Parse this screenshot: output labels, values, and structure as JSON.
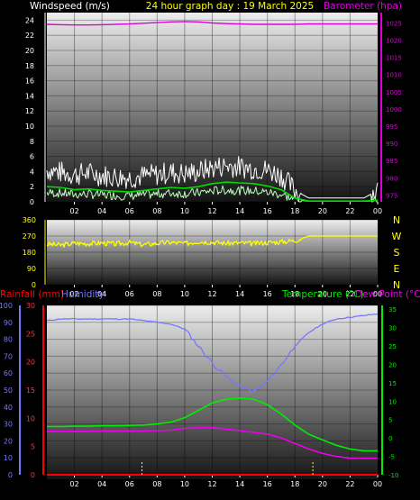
{
  "header": {
    "left_label": "Windspeed (m/s)",
    "center_label": "24 hour graph day : 19 March 2025",
    "right_label": "Barometer (hpa)"
  },
  "colors": {
    "wind_gust": "#ffffff",
    "wind_avg": "#00dd00",
    "wind_light": "#bbffbb",
    "barometer": "#dd00dd",
    "direction": "#ffff00",
    "humidity": "#7777ff",
    "temperature": "#00ee00",
    "dewpoint": "#ee00ee",
    "rainfall": "#ff0000",
    "sunrise_sunset": "#ffff00",
    "direction_label": "#ffff00"
  },
  "x_ticks": [
    "02",
    "04",
    "06",
    "08",
    "10",
    "12",
    "14",
    "16",
    "18",
    "20",
    "22",
    "00"
  ],
  "panel_wind": {
    "y_left_ticks": [
      "0",
      "2",
      "4",
      "6",
      "8",
      "10",
      "12",
      "14",
      "16",
      "18",
      "20",
      "22",
      "24"
    ],
    "y_right_ticks": [
      "975",
      "980",
      "985",
      "990",
      "995",
      "1000",
      "1005",
      "1010",
      "1015",
      "1020",
      "1025"
    ]
  },
  "panel_direction": {
    "y_left_ticks": [
      "0",
      "90",
      "180",
      "270",
      "360"
    ],
    "compass_labels": [
      "N",
      "W",
      "S",
      "E",
      "N"
    ]
  },
  "panel_bottom": {
    "left_label_rain": "Rainfall (mm)",
    "left_label_humidity": "Humidity",
    "right_label_temp": "Temperature (°C)",
    "right_label_dew": "Dew Point (°C)",
    "y_rain_ticks": [
      "0",
      "5",
      "10",
      "15",
      "20",
      "25",
      "30"
    ],
    "y_humidity_ticks": [
      "0",
      "10",
      "20",
      "30",
      "40",
      "50",
      "60",
      "70",
      "80",
      "90",
      "100"
    ],
    "y_temp_ticks": [
      "-10",
      "-5",
      "0",
      "5",
      "10",
      "15",
      "20",
      "25",
      "30",
      "35"
    ]
  },
  "chart_data": [
    {
      "type": "line",
      "title": "24 hour graph day : 19 March 2025",
      "x": [
        0,
        1,
        2,
        3,
        4,
        5,
        6,
        7,
        8,
        9,
        10,
        11,
        12,
        13,
        14,
        15,
        16,
        17,
        18,
        19,
        20,
        21,
        22,
        23,
        24
      ],
      "x_tick_labels": [
        "02",
        "04",
        "06",
        "08",
        "10",
        "12",
        "14",
        "16",
        "18",
        "20",
        "22",
        "00"
      ],
      "ylabel_left": "Windspeed (m/s)",
      "ylim_left": [
        0,
        25
      ],
      "ylabel_right": "Barometer (hpa)",
      "ylim_right": [
        973,
        1028
      ],
      "series": [
        {
          "name": "Windspeed (m/s)",
          "axis": "left",
          "values": [
            4.2,
            3.9,
            3.6,
            3.8,
            3.5,
            3.3,
            3.2,
            3.4,
            3.6,
            3.9,
            3.7,
            4.0,
            4.5,
            4.8,
            4.6,
            4.4,
            4.2,
            3.5,
            1.5,
            0.5,
            0.5,
            0.5,
            0.5,
            0.5,
            1.5
          ]
        },
        {
          "name": "",
          "axis": "left",
          "values": [
            2.0,
            1.9,
            1.6,
            1.7,
            1.5,
            1.4,
            1.3,
            1.5,
            1.7,
            1.9,
            1.8,
            2.0,
            2.4,
            2.6,
            2.5,
            2.4,
            2.1,
            1.6,
            0.5,
            0.1,
            0.1,
            0.1,
            0.1,
            0.1,
            0.2
          ]
        },
        {
          "name": "Barometer (hpa)",
          "axis": "right",
          "values": [
            1024.6,
            1024.5,
            1024.4,
            1024.4,
            1024.5,
            1024.6,
            1024.7,
            1024.9,
            1025.1,
            1025.3,
            1025.4,
            1025.3,
            1025.0,
            1024.8,
            1024.7,
            1024.6,
            1024.6,
            1024.6,
            1024.6,
            1024.7,
            1024.7,
            1024.7,
            1024.7,
            1024.7,
            1024.7
          ]
        }
      ]
    },
    {
      "type": "line",
      "x": [
        0,
        1,
        2,
        3,
        4,
        5,
        6,
        7,
        8,
        9,
        10,
        11,
        12,
        13,
        14,
        15,
        16,
        17,
        18,
        19,
        20,
        21,
        22,
        23,
        24
      ],
      "x_tick_labels": [
        "02",
        "04",
        "06",
        "08",
        "10",
        "12",
        "14",
        "16",
        "18",
        "20",
        "22",
        "00"
      ],
      "ylim": [
        0,
        360
      ],
      "series": [
        {
          "name": "",
          "values": [
            225,
            220,
            230,
            228,
            232,
            226,
            234,
            222,
            230,
            235,
            228,
            240,
            236,
            230,
            232,
            228,
            234,
            238,
            245,
            270,
            270,
            270,
            270,
            270,
            270
          ]
        }
      ]
    },
    {
      "type": "line",
      "x": [
        0,
        1,
        2,
        3,
        4,
        5,
        6,
        7,
        8,
        9,
        10,
        11,
        12,
        13,
        14,
        15,
        16,
        17,
        18,
        19,
        20,
        21,
        22,
        23,
        24
      ],
      "x_tick_labels": [
        "02",
        "04",
        "06",
        "08",
        "10",
        "12",
        "14",
        "16",
        "18",
        "20",
        "22",
        "00"
      ],
      "ylim_humidity": [
        0,
        100
      ],
      "ylim_temperature": [
        -10,
        36
      ],
      "ylim_rainfall": [
        0,
        30
      ],
      "series": [
        {
          "name": "Humidity",
          "axis": "humidity",
          "values": [
            91,
            92,
            92,
            92,
            92,
            92,
            92,
            91,
            90,
            89,
            86,
            76,
            66,
            58,
            52,
            49,
            55,
            65,
            76,
            84,
            89,
            92,
            93,
            94,
            95
          ]
        },
        {
          "name": "Temperature (°C)",
          "axis": "temperature",
          "values": [
            3.1,
            3.1,
            3.2,
            3.2,
            3.3,
            3.3,
            3.4,
            3.5,
            3.8,
            4.3,
            5.5,
            7.5,
            9.5,
            10.5,
            10.8,
            10.5,
            9.0,
            6.5,
            3.5,
            1.0,
            -0.5,
            -2.0,
            -3.0,
            -3.5,
            -3.5
          ]
        },
        {
          "name": "Dew Point (°C)",
          "axis": "temperature",
          "values": [
            1.8,
            1.8,
            1.8,
            1.8,
            1.9,
            1.9,
            1.9,
            1.9,
            2.0,
            2.1,
            2.6,
            2.8,
            2.8,
            2.4,
            2.0,
            1.5,
            1.0,
            0.0,
            -1.5,
            -3.0,
            -4.2,
            -5.0,
            -5.5,
            -5.5,
            -5.5
          ]
        },
        {
          "name": "Rainfall (mm)",
          "axis": "rainfall",
          "values": [
            0,
            0,
            0,
            0,
            0,
            0,
            0,
            0,
            0,
            0,
            0,
            0,
            0,
            0,
            0,
            0,
            0,
            0,
            0,
            0,
            0,
            0,
            0,
            0,
            0
          ]
        }
      ],
      "markers_x": [
        6.9,
        19.3
      ]
    }
  ]
}
